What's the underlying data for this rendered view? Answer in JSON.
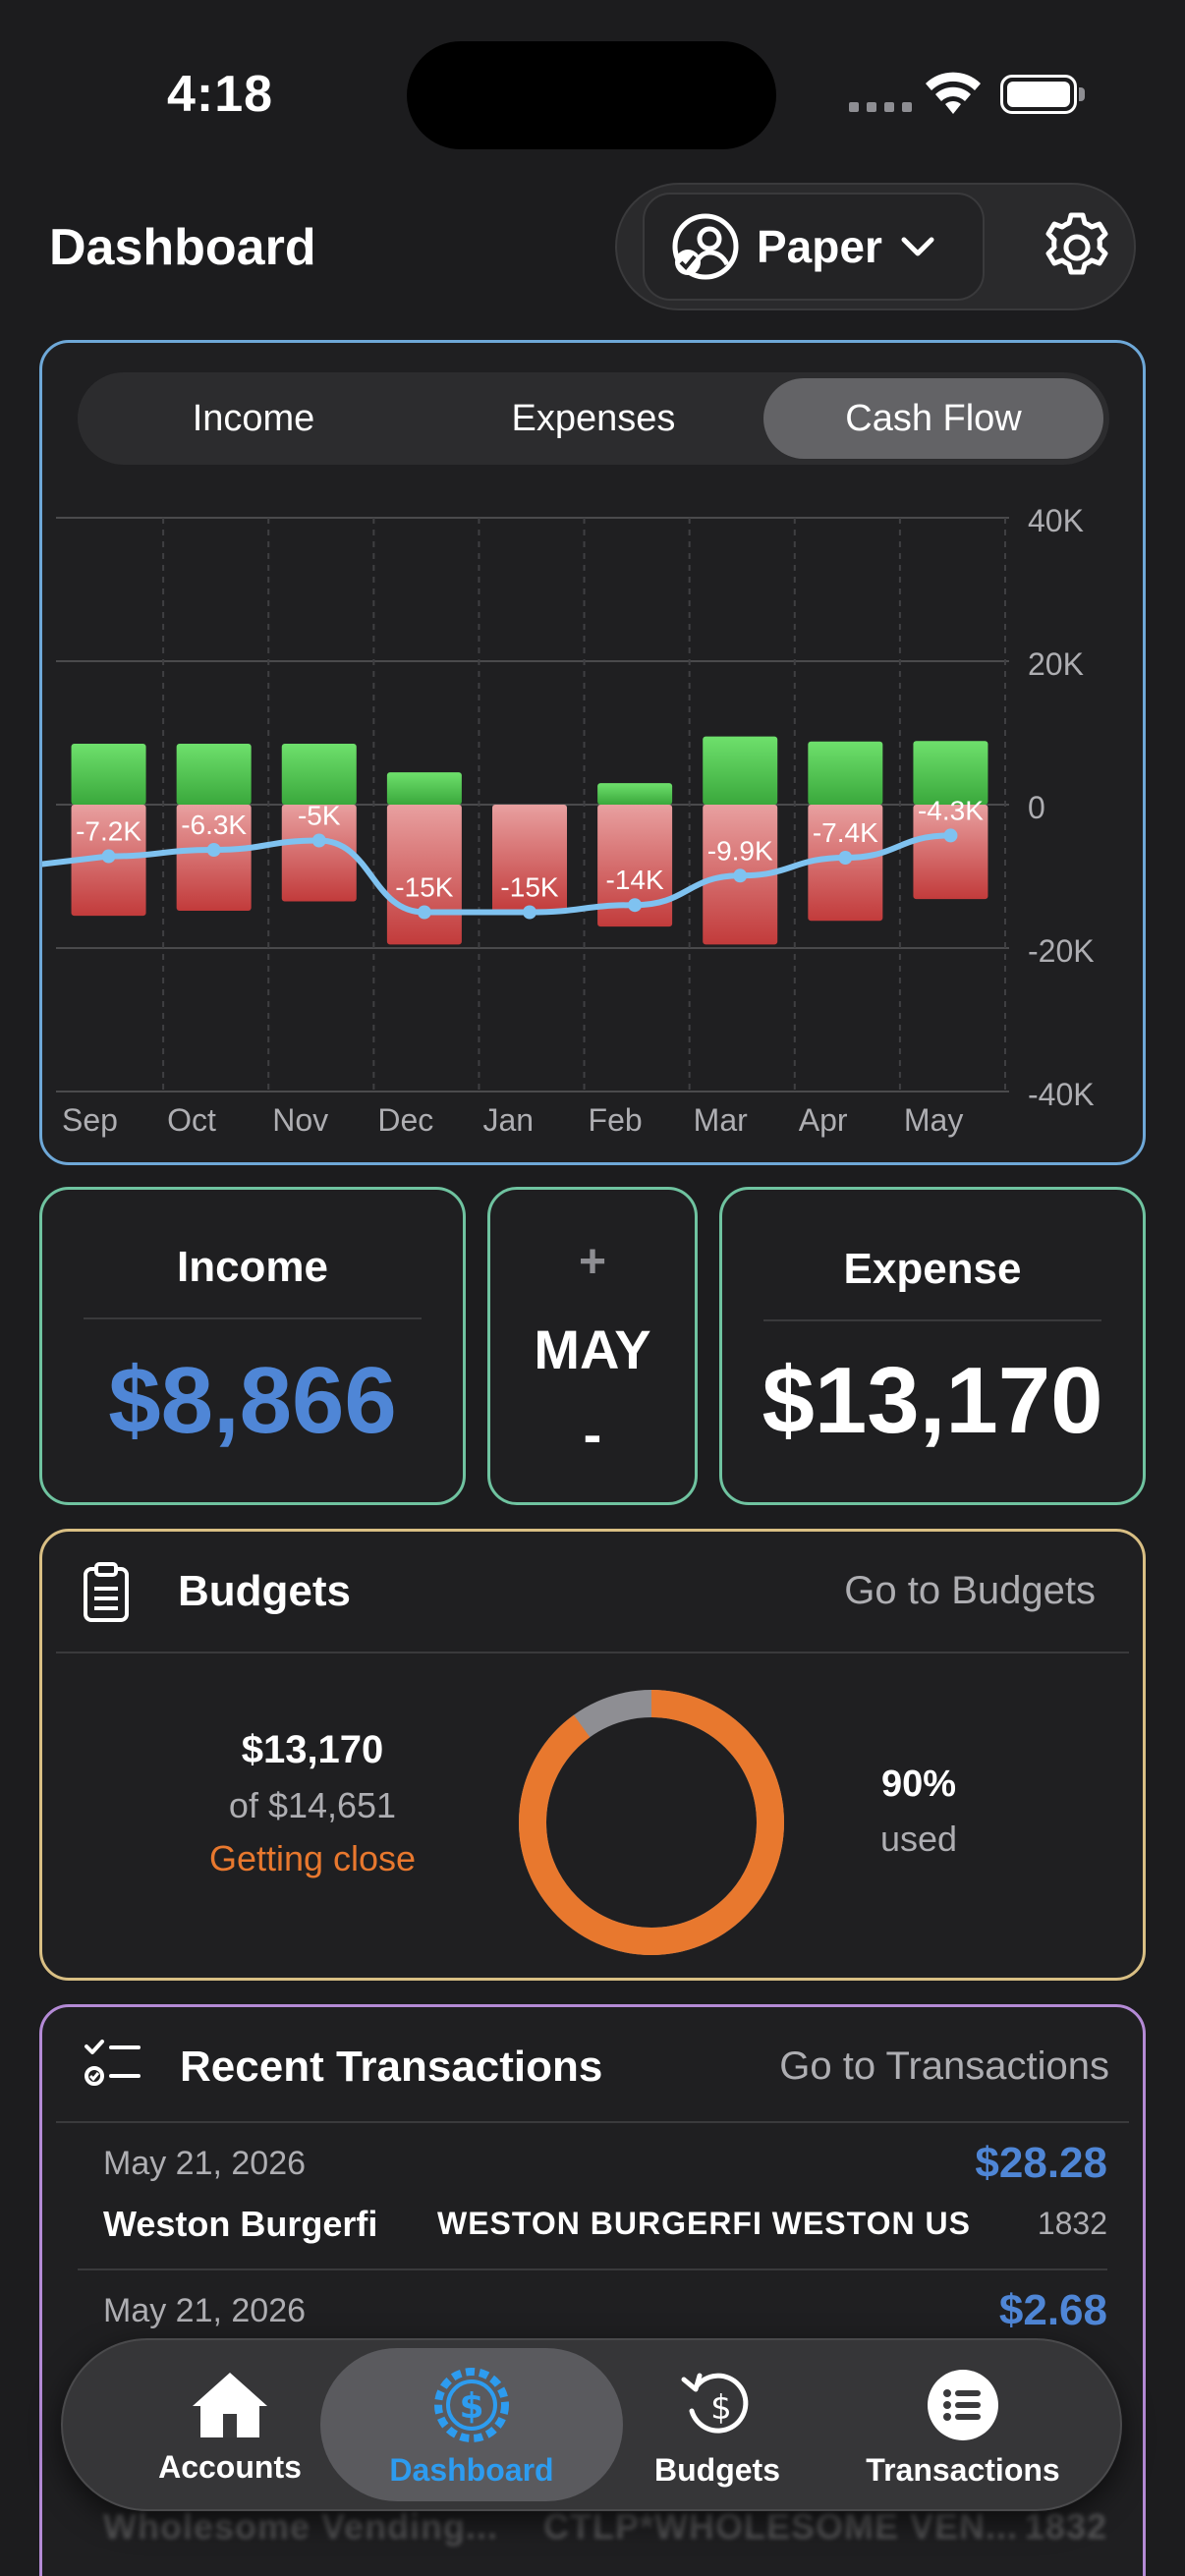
{
  "status_bar": {
    "time": "4:18"
  },
  "header": {
    "title": "Dashboard",
    "account_label": "Paper"
  },
  "chart_tabs": [
    "Income",
    "Expenses",
    "Cash Flow"
  ],
  "chart_data": {
    "type": "bar",
    "categories": [
      "Sep",
      "Oct",
      "Nov",
      "Dec",
      "Jan",
      "Feb",
      "Mar",
      "Apr",
      "May"
    ],
    "series": [
      {
        "values": [
          8.5,
          8.5,
          8.5,
          4.5,
          0,
          3.0,
          9.5,
          8.8,
          8.866
        ]
      },
      {
        "values": [
          -15.5,
          -14.8,
          -13.5,
          -19.5,
          -15,
          -17,
          -19.5,
          -16.2,
          -13.17
        ]
      },
      {
        "values": [
          -7.2,
          -6.3,
          -5,
          -15,
          -15,
          -14,
          -9.9,
          -7.4,
          -4.3
        ]
      }
    ],
    "data_labels": [
      "-7.2K",
      "-6.3K",
      "-5K",
      "-15K",
      "-15K",
      "-14K",
      "-9.9K",
      "-7.4K",
      "-4.3K"
    ],
    "y_ticks": [
      "40K",
      "20K",
      "0",
      "-20K",
      "-40K"
    ],
    "ylim": [
      -40,
      40
    ],
    "grid": true,
    "colors": {
      "positive": "#5bd25c",
      "negative": "#d76b6b",
      "line": "#7fc2f0"
    }
  },
  "summary": {
    "income_title": "Income",
    "income_value": "$8,866",
    "month_plus": "+",
    "month": "MAY",
    "month_minus": "-",
    "expense_title": "Expense",
    "expense_value": "$13,170"
  },
  "budgets": {
    "title": "Budgets",
    "link": "Go to Budgets",
    "spent": "$13,170",
    "of_total": "of $14,651",
    "status": "Getting close",
    "percent": "90%",
    "used_label": "used",
    "used_fraction": 0.9
  },
  "transactions": {
    "title": "Recent Transactions",
    "link": "Go to Transactions",
    "items": [
      {
        "date": "May 21, 2026",
        "amount": "$28.28",
        "payee": "Weston Burgerfi",
        "description": "WESTON BURGERFI WESTON US",
        "ref": "1832"
      },
      {
        "date": "May 21, 2026",
        "amount": "$2.68",
        "payee": "Wholesome Vending...",
        "description": "CTLP*WHOLESOME VEN...",
        "ref": "1832"
      }
    ]
  },
  "tabbar": {
    "items": [
      {
        "label": "Accounts",
        "icon": "house-icon"
      },
      {
        "label": "Dashboard",
        "icon": "dollar-circle-icon"
      },
      {
        "label": "Budgets",
        "icon": "budget-refresh-icon"
      },
      {
        "label": "Transactions",
        "icon": "list-icon"
      }
    ],
    "active": "Dashboard",
    "active_color": "#2d9cf0"
  }
}
